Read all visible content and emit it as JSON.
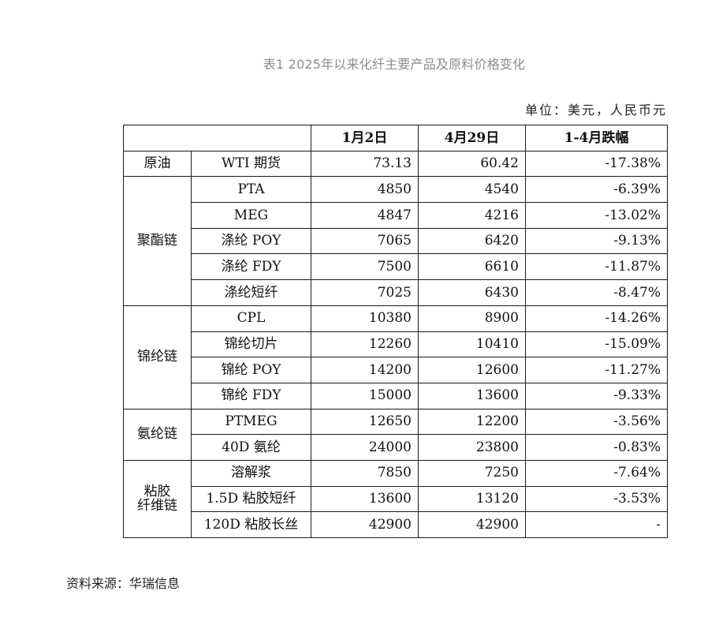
{
  "caption": "表1  2025年以来化纤主要产品及原料价格变化",
  "unit": "单位：美元，人民币元",
  "headers": {
    "blank": "",
    "date1": "1月2日",
    "date2": "4月29日",
    "change": "1-4月跌幅"
  },
  "rows": [
    {
      "group": "原油",
      "product": "WTI 期货",
      "jan2": "73.13",
      "apr29": "60.42",
      "change": "-17.38%"
    },
    {
      "group": "聚酯链",
      "product": "PTA",
      "jan2": "4850",
      "apr29": "4540",
      "change": "-6.39%"
    },
    {
      "group": "",
      "product": "MEG",
      "jan2": "4847",
      "apr29": "4216",
      "change": "-13.02%"
    },
    {
      "group": "",
      "product": "涤纶 POY",
      "jan2": "7065",
      "apr29": "6420",
      "change": "-9.13%"
    },
    {
      "group": "",
      "product": "涤纶 FDY",
      "jan2": "7500",
      "apr29": "6610",
      "change": "-11.87%"
    },
    {
      "group": "",
      "product": "涤纶短纤",
      "jan2": "7025",
      "apr29": "6430",
      "change": "-8.47%"
    },
    {
      "group": "锦纶链",
      "product": "CPL",
      "jan2": "10380",
      "apr29": "8900",
      "change": "-14.26%"
    },
    {
      "group": "",
      "product": "锦纶切片",
      "jan2": "12260",
      "apr29": "10410",
      "change": "-15.09%"
    },
    {
      "group": "",
      "product": "锦纶 POY",
      "jan2": "14200",
      "apr29": "12600",
      "change": "-11.27%"
    },
    {
      "group": "",
      "product": "锦纶 FDY",
      "jan2": "15000",
      "apr29": "13600",
      "change": "-9.33%"
    },
    {
      "group": "氨纶链",
      "product": "PTMEG",
      "jan2": "12650",
      "apr29": "12200",
      "change": "-3.56%"
    },
    {
      "group": "",
      "product": "40D 氨纶",
      "jan2": "24000",
      "apr29": "23800",
      "change": "-0.83%"
    },
    {
      "group": "粘胶纤维链",
      "product": "溶解浆",
      "jan2": "7850",
      "apr29": "7250",
      "change": "-7.64%"
    },
    {
      "group": "",
      "product": "1.5D 粘胶短纤",
      "jan2": "13600",
      "apr29": "13120",
      "change": "-3.53%"
    },
    {
      "group": "",
      "product": "120D 粘胶长丝",
      "jan2": "42900",
      "apr29": "42900",
      "change": "-"
    }
  ],
  "source": "资料来源：华瑞信息"
}
